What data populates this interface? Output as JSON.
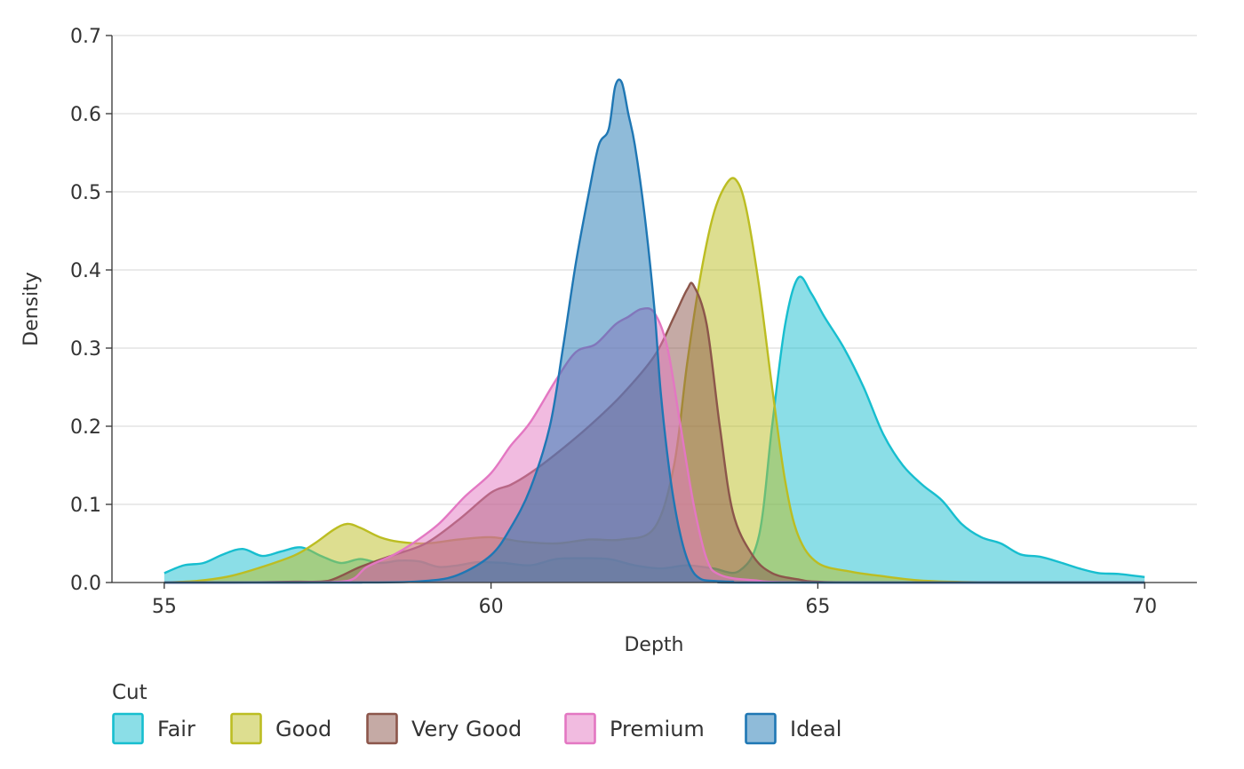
{
  "chart_data": {
    "type": "area",
    "xlabel": "Depth",
    "ylabel": "Density",
    "xlim": [
      54.2,
      70.8
    ],
    "ylim": [
      0,
      0.7
    ],
    "xticks": [
      55,
      60,
      65,
      70
    ],
    "yticks": [
      0.0,
      0.1,
      0.2,
      0.3,
      0.4,
      0.5,
      0.6,
      0.7
    ],
    "ytick_labels": [
      "0.0",
      "0.1",
      "0.2",
      "0.3",
      "0.4",
      "0.5",
      "0.6",
      "0.7"
    ],
    "grid": "horizontal",
    "legend_title": "Cut",
    "legend_position": "bottom-left",
    "series": [
      {
        "name": "Fair",
        "color": "#17becf",
        "x": [
          55.0,
          55.3,
          55.6,
          55.9,
          56.2,
          56.5,
          56.8,
          57.1,
          57.4,
          57.7,
          58.0,
          58.3,
          58.6,
          58.9,
          59.2,
          59.5,
          59.8,
          60.2,
          60.6,
          61.0,
          61.4,
          61.8,
          62.2,
          62.6,
          63.0,
          63.4,
          63.8,
          64.1,
          64.3,
          64.5,
          64.7,
          64.9,
          65.1,
          65.4,
          65.7,
          66.0,
          66.3,
          66.6,
          66.9,
          67.2,
          67.5,
          67.8,
          68.1,
          68.4,
          68.7,
          69.0,
          69.3,
          69.6,
          70.0
        ],
        "y": [
          0.012,
          0.022,
          0.025,
          0.036,
          0.043,
          0.034,
          0.04,
          0.045,
          0.034,
          0.025,
          0.03,
          0.025,
          0.028,
          0.027,
          0.02,
          0.022,
          0.026,
          0.025,
          0.022,
          0.03,
          0.031,
          0.03,
          0.022,
          0.018,
          0.022,
          0.018,
          0.015,
          0.06,
          0.2,
          0.33,
          0.39,
          0.37,
          0.34,
          0.3,
          0.25,
          0.19,
          0.15,
          0.125,
          0.105,
          0.075,
          0.058,
          0.05,
          0.036,
          0.033,
          0.026,
          0.018,
          0.012,
          0.011,
          0.007
        ]
      },
      {
        "name": "Good",
        "color": "#bcbd22",
        "x": [
          55.0,
          55.5,
          56.0,
          56.5,
          57.0,
          57.3,
          57.6,
          57.8,
          58.0,
          58.3,
          58.6,
          59.0,
          59.5,
          60.0,
          60.5,
          61.0,
          61.5,
          62.0,
          62.5,
          62.8,
          63.0,
          63.2,
          63.4,
          63.6,
          63.75,
          63.9,
          64.1,
          64.3,
          64.5,
          64.7,
          65.0,
          65.5,
          66.0,
          66.5,
          67.0,
          68.0,
          70.0
        ],
        "y": [
          0.0,
          0.002,
          0.008,
          0.02,
          0.035,
          0.05,
          0.068,
          0.075,
          0.07,
          0.058,
          0.052,
          0.05,
          0.055,
          0.058,
          0.052,
          0.05,
          0.055,
          0.055,
          0.07,
          0.15,
          0.28,
          0.39,
          0.47,
          0.51,
          0.515,
          0.48,
          0.38,
          0.25,
          0.13,
          0.06,
          0.025,
          0.014,
          0.008,
          0.003,
          0.001,
          0.0,
          0.0
        ]
      },
      {
        "name": "Very Good",
        "color": "#8c564b",
        "x": [
          55.0,
          56.0,
          57.0,
          57.5,
          58.0,
          58.5,
          59.0,
          59.5,
          60.0,
          60.3,
          60.6,
          61.0,
          61.5,
          62.0,
          62.5,
          62.8,
          63.0,
          63.1,
          63.3,
          63.5,
          63.7,
          64.0,
          64.3,
          64.7,
          65.0,
          66.0,
          70.0
        ],
        "y": [
          0.0,
          0.0,
          0.001,
          0.002,
          0.02,
          0.035,
          0.05,
          0.08,
          0.115,
          0.125,
          0.14,
          0.165,
          0.2,
          0.24,
          0.29,
          0.34,
          0.375,
          0.38,
          0.33,
          0.2,
          0.09,
          0.035,
          0.012,
          0.004,
          0.001,
          0.0,
          0.0
        ]
      },
      {
        "name": "Premium",
        "color": "#e377c2",
        "x": [
          55.0,
          57.0,
          57.8,
          58.1,
          58.5,
          58.8,
          59.2,
          59.6,
          60.0,
          60.3,
          60.6,
          61.0,
          61.3,
          61.6,
          61.9,
          62.1,
          62.3,
          62.5,
          62.7,
          62.9,
          63.1,
          63.3,
          63.5,
          64.0,
          65.0,
          70.0
        ],
        "y": [
          0.0,
          0.0,
          0.002,
          0.02,
          0.035,
          0.05,
          0.075,
          0.11,
          0.14,
          0.175,
          0.205,
          0.26,
          0.295,
          0.305,
          0.33,
          0.34,
          0.35,
          0.345,
          0.3,
          0.2,
          0.1,
          0.03,
          0.01,
          0.003,
          0.0,
          0.0
        ]
      },
      {
        "name": "Ideal",
        "color": "#1f77b4",
        "x": [
          55.0,
          58.0,
          59.0,
          59.5,
          60.0,
          60.3,
          60.6,
          60.9,
          61.1,
          61.3,
          61.5,
          61.65,
          61.8,
          61.9,
          62.0,
          62.1,
          62.2,
          62.35,
          62.5,
          62.6,
          62.75,
          62.9,
          63.05,
          63.2,
          63.4,
          63.7,
          64.0,
          70.0
        ],
        "y": [
          0.0,
          0.0,
          0.002,
          0.01,
          0.035,
          0.07,
          0.12,
          0.2,
          0.3,
          0.41,
          0.5,
          0.56,
          0.58,
          0.635,
          0.64,
          0.6,
          0.56,
          0.47,
          0.35,
          0.24,
          0.13,
          0.06,
          0.02,
          0.005,
          0.002,
          0.001,
          0.0,
          0.0
        ]
      }
    ]
  }
}
